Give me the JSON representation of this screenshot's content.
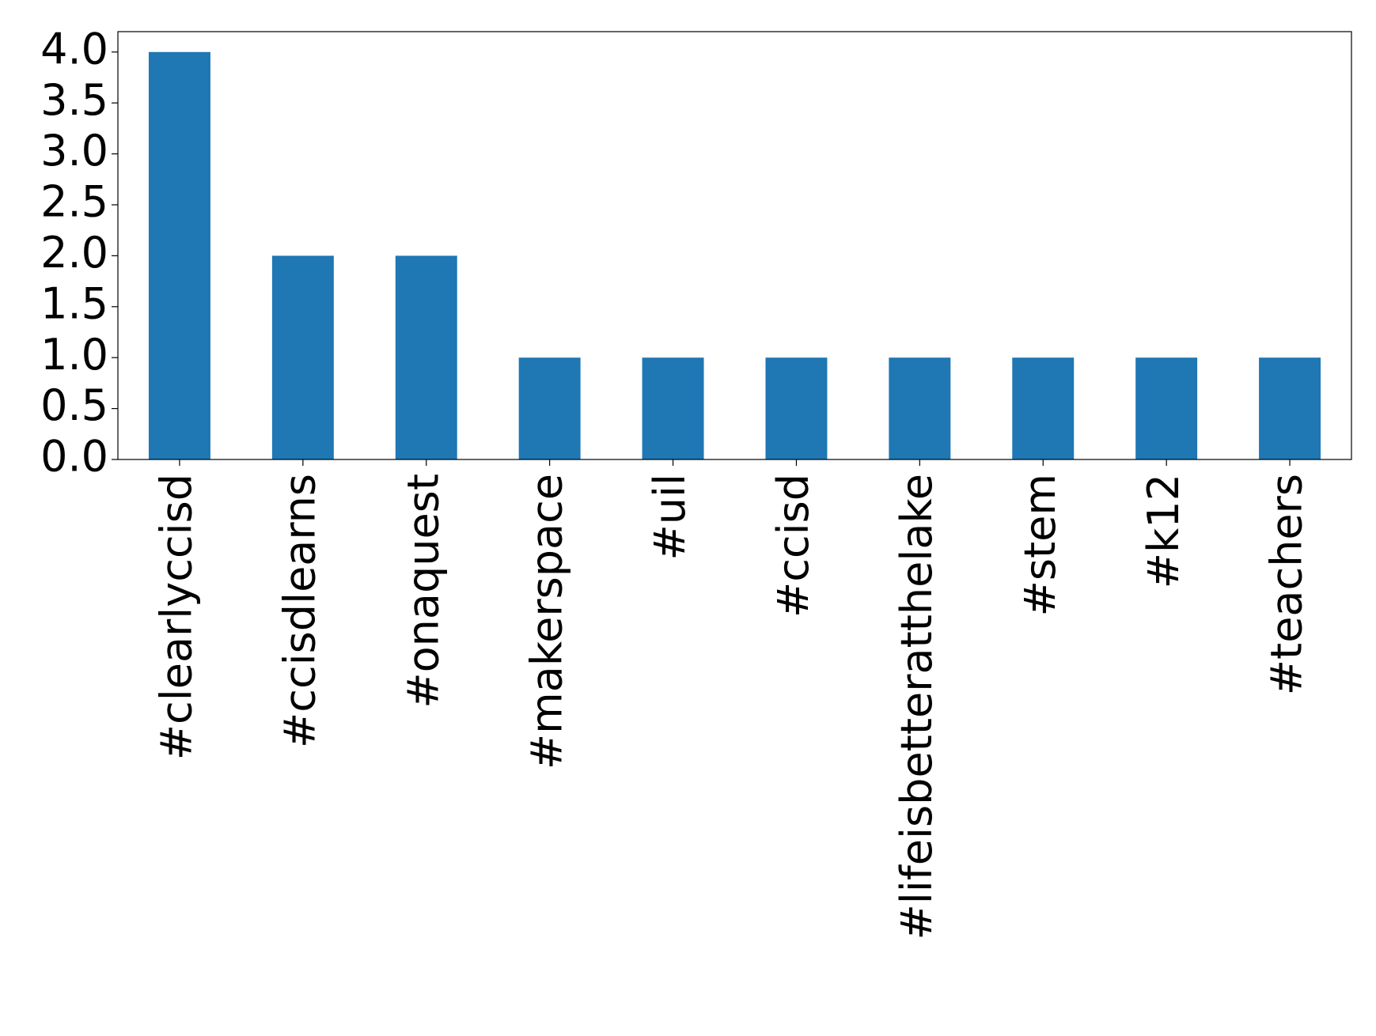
{
  "chart_data": {
    "type": "bar",
    "categories": [
      "#clearlyccisd",
      "#ccisdlearns",
      "#onaquest",
      "#makerspace",
      "#uil",
      "#ccisd",
      "#lifeisbetteratthelake",
      "#stem",
      "#k12",
      "#teachers"
    ],
    "values": [
      4,
      2,
      2,
      1,
      1,
      1,
      1,
      1,
      1,
      1
    ],
    "color": "#1f77b4",
    "ylim": [
      0,
      4.2
    ],
    "yticks": [
      {
        "value": 0,
        "label": "0.0"
      },
      {
        "value": 0.5,
        "label": "0.5"
      },
      {
        "value": 1,
        "label": "1.0"
      },
      {
        "value": 1.5,
        "label": "1.5"
      },
      {
        "value": 2,
        "label": "2.0"
      },
      {
        "value": 2.5,
        "label": "2.5"
      },
      {
        "value": 3,
        "label": "3.0"
      },
      {
        "value": 3.5,
        "label": "3.5"
      },
      {
        "value": 4,
        "label": "4.0"
      }
    ],
    "grid": false
  }
}
